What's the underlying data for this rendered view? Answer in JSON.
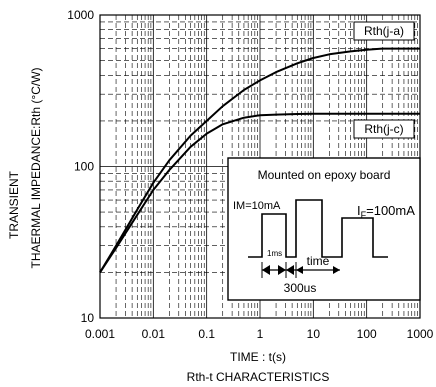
{
  "chart_data": {
    "type": "line",
    "xscale": "log",
    "yscale": "log",
    "xlim": [
      0.001,
      1000
    ],
    "ylim": [
      10,
      1000
    ],
    "grid": true,
    "xlabel": "TIME : t(s)",
    "ylabel_lines": [
      "TRANSIENT",
      "THAERMAL IMPEDANCE:Rth (°C/W)"
    ],
    "caption": "Rth-t CHARACTERISTICS",
    "x_ticks": [
      "0.001",
      "0.01",
      "0.1",
      "1",
      "10",
      "100",
      "1000"
    ],
    "y_ticks": [
      "10",
      "100",
      "1000"
    ],
    "series": [
      {
        "name": "Rth(j-a)",
        "x": [
          0.001,
          0.002,
          0.005,
          0.01,
          0.02,
          0.05,
          0.1,
          0.2,
          0.5,
          1,
          2,
          5,
          10,
          20,
          50,
          100,
          200,
          500,
          1000
        ],
        "y": [
          20,
          30,
          52,
          78,
          110,
          160,
          200,
          250,
          320,
          370,
          420,
          480,
          520,
          550,
          575,
          590,
          600,
          600,
          600
        ]
      },
      {
        "name": "Rth(j-c)",
        "x": [
          0.001,
          0.002,
          0.005,
          0.01,
          0.02,
          0.05,
          0.1,
          0.2,
          0.5,
          1,
          2,
          5,
          10,
          20,
          50,
          100,
          1000
        ],
        "y": [
          20,
          29,
          48,
          70,
          95,
          135,
          165,
          190,
          210,
          218,
          220,
          222,
          223,
          223,
          223,
          223,
          223
        ]
      }
    ],
    "inset": {
      "title": "Mounted on epoxy board",
      "im_label": "IM=10mA",
      "if_label": "IF=100mA",
      "pulse_width": "1ms",
      "time_label": "time",
      "period_label": "300us"
    }
  }
}
